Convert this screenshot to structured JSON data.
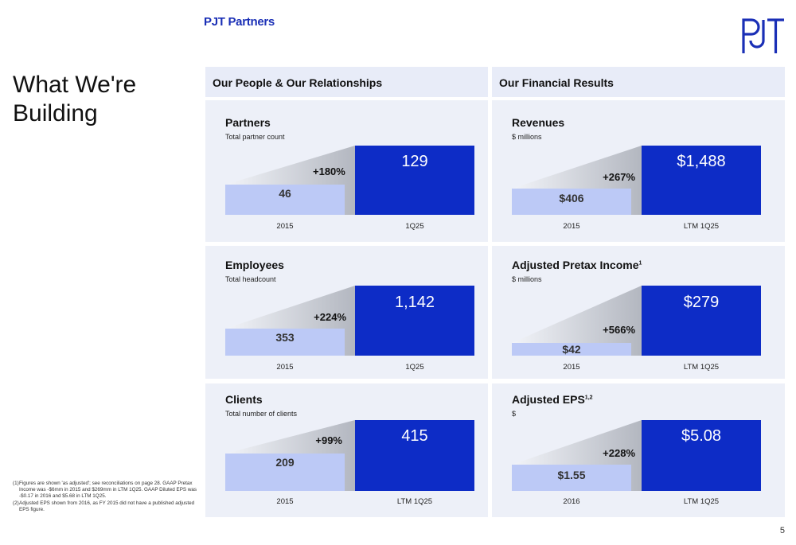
{
  "header": {
    "brand": "PJT Partners"
  },
  "title": "What We're Building",
  "columns": {
    "left": "Our People & Our Relationships",
    "right": "Our Financial Results"
  },
  "cards": {
    "partners": {
      "title": "Partners",
      "subtitle": "Total partner count",
      "base_value": "46",
      "value": "129",
      "growth": "+180%",
      "base_label": "2015",
      "label": "1Q25",
      "base_number": 46,
      "number": 129
    },
    "revenues": {
      "title": "Revenues",
      "subtitle": "$ millions",
      "base_value": "$406",
      "value": "$1,488",
      "growth": "+267%",
      "base_label": "2015",
      "label": "LTM 1Q25",
      "base_number": 406,
      "number": 1488
    },
    "employees": {
      "title": "Employees",
      "subtitle": "Total headcount",
      "base_value": "353",
      "value": "1,142",
      "growth": "+224%",
      "base_label": "2015",
      "label": "1Q25",
      "base_number": 353,
      "number": 1142
    },
    "pretax": {
      "title": "Adjusted Pretax Income",
      "title_sup": "1",
      "subtitle": "$ millions",
      "base_value": "$42",
      "value": "$279",
      "growth": "+566%",
      "base_label": "2015",
      "label": "LTM 1Q25",
      "base_number": 42,
      "number": 279
    },
    "clients": {
      "title": "Clients",
      "subtitle": "Total number of clients",
      "base_value": "209",
      "value": "415",
      "growth": "+99%",
      "base_label": "2015",
      "label": "LTM 1Q25",
      "base_number": 209,
      "number": 415
    },
    "eps": {
      "title": "Adjusted EPS",
      "title_sup": "1,2",
      "subtitle": "$",
      "base_value": "$1.55",
      "value": "$5.08",
      "growth": "+228%",
      "base_label": "2016",
      "label": "LTM 1Q25",
      "base_number": 1.55,
      "number": 5.08
    }
  },
  "footnotes": [
    {
      "num": "(1)",
      "text": "Figures are shown 'as adjusted'; see reconciliations on page 28. GAAP Pretax Income was -$6mm in 2015 and $269mm in LTM 1Q25. GAAP Diluted EPS was -$0.17 in 2016 and $5.68 in LTM 1Q25."
    },
    {
      "num": "(2)",
      "text": "Adjusted EPS shown from 2016, as FY 2015 did not have a published adjusted EPS figure."
    }
  ],
  "page_number": "5",
  "colors": {
    "brand": "#1a2fb6",
    "bar": "#0d2cc6",
    "base_bar": "#bcc9f6",
    "panel": "#edf0f8",
    "header": "#e8ecf8"
  }
}
